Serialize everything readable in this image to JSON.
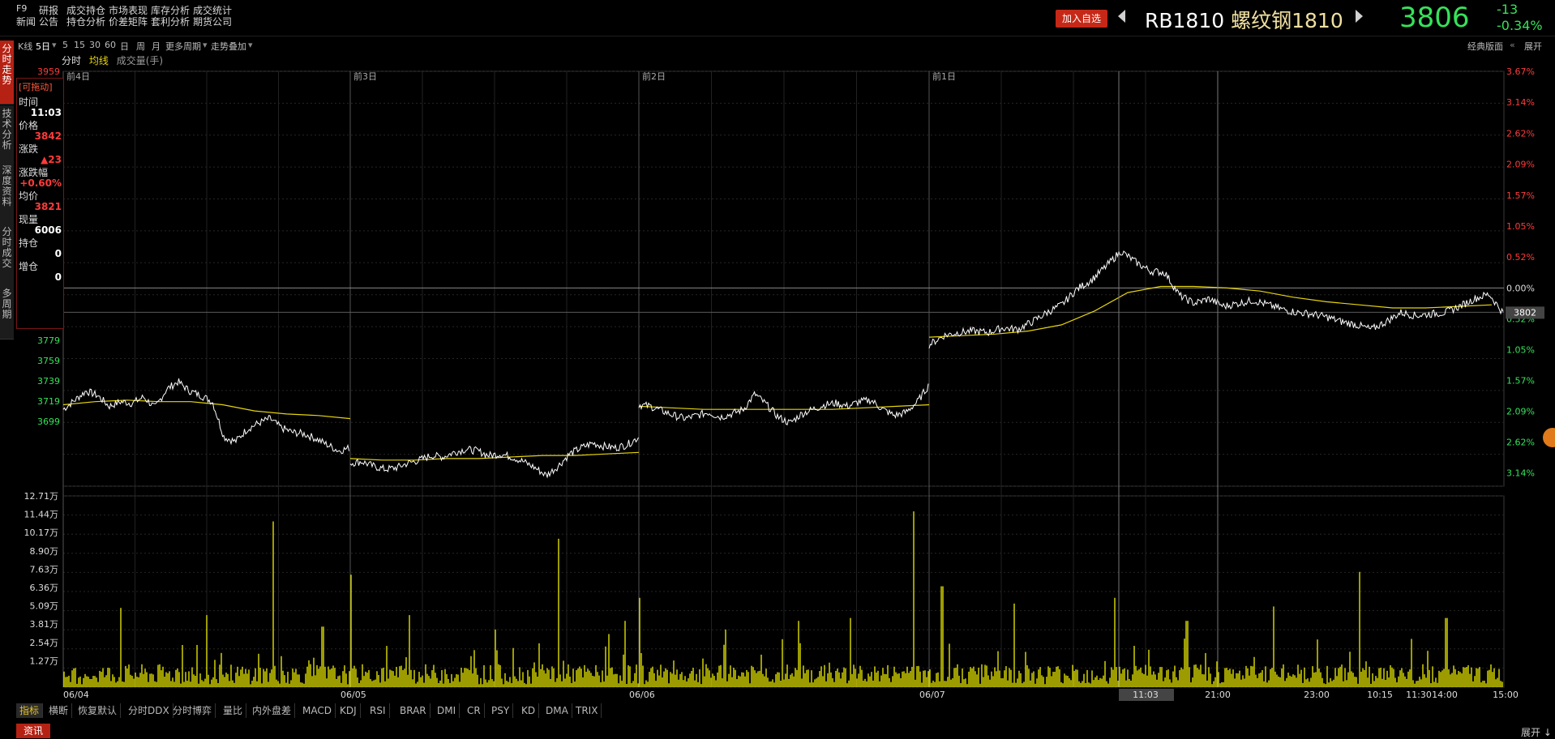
{
  "header": {
    "f9": "F9",
    "menu": [
      {
        "top": "研报",
        "bottom": "新闻"
      },
      {
        "top": "成交持仓",
        "bottom": "公告"
      },
      {
        "top": "市场表现",
        "bottom": "持仓分析"
      },
      {
        "top": "库存分析",
        "bottom": "价差矩阵"
      },
      {
        "top": "成交统计",
        "bottom": "套利分析"
      },
      {
        "top": "",
        "bottom": "期货公司"
      }
    ],
    "add_watch": "加入自选",
    "code": "RB1810",
    "name": "螺纹钢1810",
    "price": "3806",
    "change": "-13",
    "change_pct": "-0.34%"
  },
  "toolbar": {
    "kline": "K线",
    "days": "5日",
    "p5": "5",
    "p15": "15",
    "p30": "30",
    "p60": "60",
    "day": "日",
    "week": "周",
    "month": "月",
    "more": "更多周期",
    "overlay": "走势叠加",
    "classic": "经典版面",
    "expand": "展开"
  },
  "subtabs": {
    "fenshi": "分时",
    "junxian": "均线",
    "volume": "成交量(手)"
  },
  "sidebar": [
    "分时走势",
    "技术分析",
    "深度资料",
    "分时成交",
    "多周期"
  ],
  "info_panel": {
    "header": "[可拖动]",
    "rows": [
      {
        "label": "时间",
        "value": "11:03",
        "color": "#ffffff"
      },
      {
        "label": "价格",
        "value": "3842",
        "color": "#ff3b3b"
      },
      {
        "label": "涨跌",
        "value": "▲23",
        "color": "#ff3b3b"
      },
      {
        "label": "涨跌幅",
        "value": "+0.60%",
        "color": "#ff3b3b"
      },
      {
        "label": "均价",
        "value": "3821",
        "color": "#ff3b3b"
      },
      {
        "label": "现量",
        "value": "6006",
        "color": "#ffffff"
      },
      {
        "label": "持仓",
        "value": "0",
        "color": "#ffffff"
      },
      {
        "label": "增仓",
        "value": "0",
        "color": "#ffffff"
      }
    ]
  },
  "chart_data": {
    "type": "line",
    "title": "RB1810 螺纹钢1810 5日分时",
    "day_labels": [
      "前4日",
      "前3日",
      "前2日",
      "前1日"
    ],
    "date_labels": [
      "06/04",
      "06/05",
      "06/06",
      "06/07"
    ],
    "time_labels": [
      "11:03",
      "21:00",
      "23:00",
      "10:15",
      "11:30",
      "14:00",
      "15:00"
    ],
    "price_ticks": [
      "3959",
      "3779",
      "3759",
      "3739",
      "3719",
      "3699"
    ],
    "pct_ticks_red": [
      "3.67%",
      "3.14%",
      "2.62%",
      "2.09%",
      "1.57%",
      "1.05%",
      "0.52%"
    ],
    "pct_ticks_mid": "0.00%",
    "pct_ticks_green": [
      "0.52%",
      "1.05%",
      "1.57%",
      "2.09%",
      "2.62%",
      "3.14%"
    ],
    "current_price_tag": "3802",
    "volume_ticks": [
      "12.71万",
      "11.44万",
      "10.17万",
      "8.90万",
      "7.63万",
      "6.36万",
      "5.09万",
      "3.81万",
      "2.54万",
      "1.27万"
    ],
    "ylim": [
      3690,
      3960
    ],
    "prev_close": 3819,
    "price_series": [
      [
        3740,
        3746,
        3752,
        3749,
        3742,
        3745,
        3744,
        3748,
        3741,
        3753,
        3758,
        3752,
        3749,
        3745,
        3722,
        3719,
        3727,
        3731,
        3734,
        3728,
        3725,
        3724,
        3721,
        3717,
        3713,
        3715
      ],
      [
        3705,
        3706,
        3703,
        3701,
        3702,
        3705,
        3707,
        3710,
        3709,
        3712,
        3714,
        3713,
        3710,
        3711,
        3709,
        3706,
        3702,
        3697,
        3703,
        3711,
        3715,
        3718,
        3716,
        3715,
        3717,
        3722
      ],
      [
        3743,
        3742,
        3739,
        3736,
        3734,
        3736,
        3738,
        3735,
        3737,
        3740,
        3750,
        3743,
        3735,
        3731,
        3737,
        3740,
        3743,
        3744,
        3742,
        3745,
        3746,
        3740,
        3736,
        3738,
        3745,
        3756
      ],
      [
        3782,
        3788,
        3790,
        3791,
        3790,
        3793,
        3792,
        3797,
        3803,
        3808,
        3818,
        3824,
        3833,
        3843,
        3836,
        3830,
        3829,
        3814,
        3809,
        3812,
        3807,
        3809,
        3811,
        3808,
        3805,
        3803,
        3802,
        3800,
        3797,
        3795,
        3792,
        3797,
        3803,
        3801,
        3802,
        3803,
        3807,
        3812,
        3815,
        3802
      ]
    ],
    "avg_series": [
      [
        3743,
        3745,
        3746,
        3745,
        3745,
        3743,
        3739,
        3737,
        3736,
        3734
      ],
      [
        3708,
        3707,
        3707,
        3708,
        3708,
        3709,
        3710,
        3710,
        3711,
        3712
      ],
      [
        3742,
        3741,
        3740,
        3740,
        3740,
        3740,
        3740,
        3741,
        3742,
        3743
      ],
      [
        3787,
        3788,
        3789,
        3791,
        3795,
        3804,
        3816,
        3820,
        3820,
        3819,
        3817,
        3813,
        3810,
        3808,
        3806,
        3806,
        3807,
        3808
      ]
    ],
    "volume_peaks": [
      [
        0.2,
        5.5
      ],
      [
        0.5,
        5.0
      ],
      [
        0.73,
        11.5
      ],
      [
        0.9,
        4.2
      ],
      [
        1.0,
        7.8
      ],
      [
        1.2,
        5.0
      ],
      [
        1.5,
        4.0
      ],
      [
        1.72,
        10.3
      ],
      [
        1.95,
        4.6
      ],
      [
        2.0,
        6.2
      ],
      [
        2.3,
        4.0
      ],
      [
        2.55,
        4.6
      ],
      [
        2.73,
        4.8
      ],
      [
        2.95,
        12.2
      ],
      [
        3.05,
        7.0
      ],
      [
        3.3,
        5.8
      ],
      [
        3.65,
        6.2
      ],
      [
        3.9,
        4.6
      ],
      [
        4.2,
        5.6
      ],
      [
        4.5,
        8.0
      ],
      [
        4.8,
        4.8
      ]
    ],
    "volume_max": 12.71
  },
  "bottom_tabs": [
    "指标",
    "横断",
    "恢复默认",
    "分时DDX",
    "分时博弈",
    "量比",
    "内外盘差",
    "MACD",
    "KDJ",
    "RSI",
    "BRAR",
    "DMI",
    "CR",
    "PSY",
    "KD",
    "DMA",
    "TRIX"
  ],
  "news_tab": "资讯",
  "expand_bottom": "展开 ↓",
  "colors": {
    "price_line": "#ffffff",
    "avg_line": "#e6d40f",
    "volume": "#f0f000",
    "up": "#ff3b3b",
    "down": "#36e25a"
  }
}
